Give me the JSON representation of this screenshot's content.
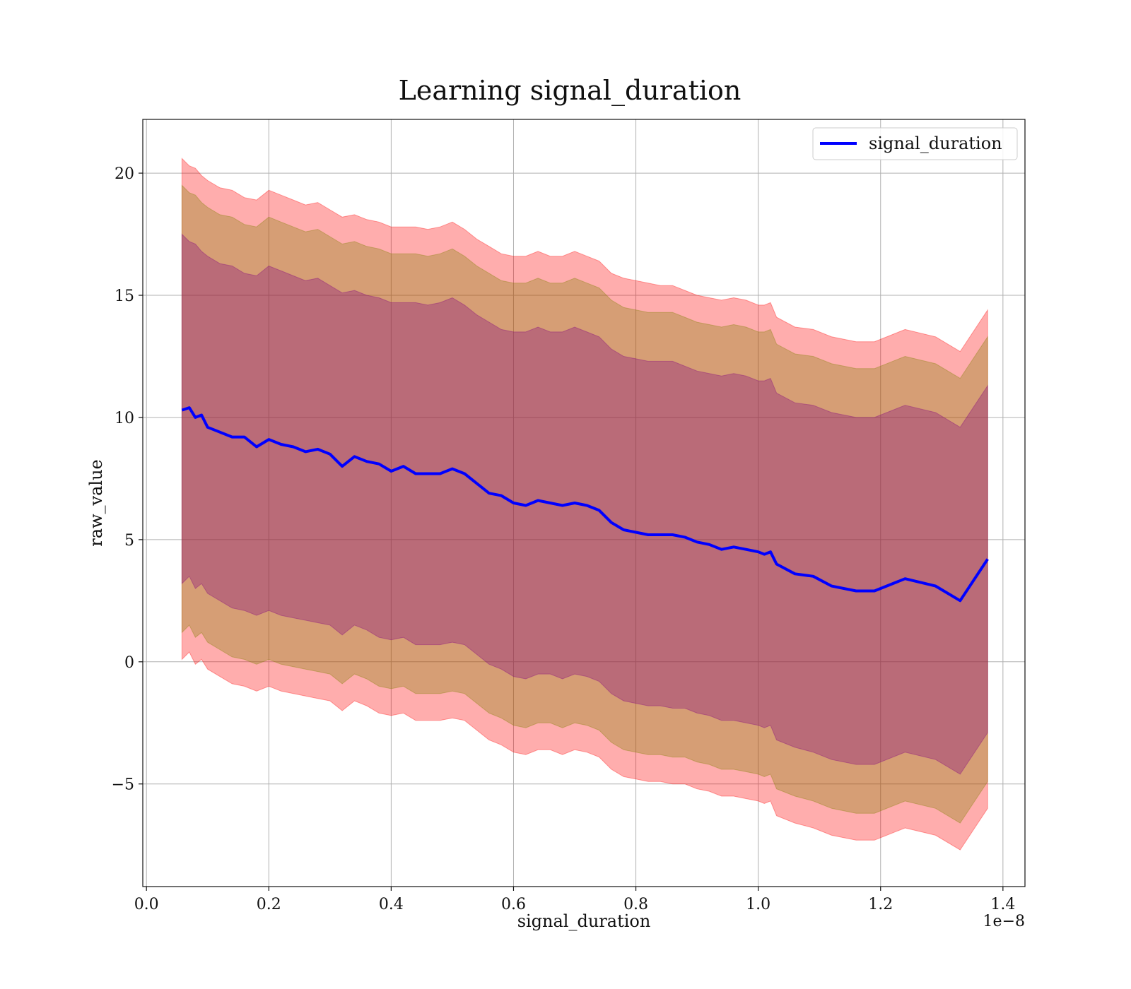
{
  "chart_data": {
    "type": "line",
    "title": "Learning signal_duration",
    "xlabel": "signal_duration",
    "ylabel": "raw_value",
    "x_offset_text": "1e−8",
    "xlim": [
      -0.006,
      1.436
    ],
    "ylim": [
      -9.2,
      22.2
    ],
    "x_ticks": [
      0.0,
      0.2,
      0.4,
      0.6,
      0.8,
      1.0,
      1.2,
      1.4
    ],
    "x_tick_labels": [
      "0.0",
      "0.2",
      "0.4",
      "0.6",
      "0.8",
      "1.0",
      "1.2",
      "1.4"
    ],
    "y_ticks": [
      -5,
      0,
      5,
      10,
      15,
      20
    ],
    "y_tick_labels": [
      "−5",
      "0",
      "5",
      "10",
      "15",
      "20"
    ],
    "grid": true,
    "legend_position": "top-right",
    "series": [
      {
        "name": "signal_duration",
        "color": "#0000ff",
        "x": [
          0.058,
          0.07,
          0.08,
          0.09,
          0.1,
          0.12,
          0.14,
          0.16,
          0.18,
          0.2,
          0.22,
          0.24,
          0.26,
          0.28,
          0.3,
          0.32,
          0.34,
          0.36,
          0.38,
          0.4,
          0.42,
          0.44,
          0.46,
          0.48,
          0.5,
          0.52,
          0.54,
          0.56,
          0.58,
          0.6,
          0.62,
          0.64,
          0.66,
          0.68,
          0.7,
          0.72,
          0.74,
          0.76,
          0.78,
          0.8,
          0.82,
          0.84,
          0.86,
          0.88,
          0.9,
          0.92,
          0.94,
          0.96,
          0.98,
          1.0,
          1.01,
          1.02,
          1.03,
          1.06,
          1.09,
          1.12,
          1.16,
          1.19,
          1.24,
          1.29,
          1.33,
          1.375
        ],
        "y": [
          10.3,
          10.4,
          10.0,
          10.1,
          9.6,
          9.4,
          9.2,
          9.2,
          8.8,
          9.1,
          8.9,
          8.8,
          8.6,
          8.7,
          8.5,
          8.0,
          8.4,
          8.2,
          8.1,
          7.8,
          8.0,
          7.7,
          7.7,
          7.7,
          7.9,
          7.7,
          7.3,
          6.9,
          6.8,
          6.5,
          6.4,
          6.6,
          6.5,
          6.4,
          6.5,
          6.4,
          6.2,
          5.7,
          5.4,
          5.3,
          5.2,
          5.2,
          5.2,
          5.1,
          4.9,
          4.8,
          4.6,
          4.7,
          4.6,
          4.5,
          4.4,
          4.5,
          4.0,
          3.6,
          3.5,
          3.1,
          2.9,
          2.9,
          3.4,
          3.1,
          2.5,
          4.2
        ]
      }
    ],
    "bands": [
      {
        "color": "#ff0000",
        "opacity": 0.32,
        "upper": [
          20.6,
          20.3,
          20.2,
          19.9,
          19.7,
          19.4,
          19.3,
          19.0,
          18.9,
          19.3,
          19.1,
          18.9,
          18.7,
          18.8,
          18.5,
          18.2,
          18.3,
          18.1,
          18.0,
          17.8,
          17.8,
          17.8,
          17.7,
          17.8,
          18.0,
          17.7,
          17.3,
          17.0,
          16.7,
          16.6,
          16.6,
          16.8,
          16.6,
          16.6,
          16.8,
          16.6,
          16.4,
          15.9,
          15.7,
          15.6,
          15.5,
          15.4,
          15.4,
          15.2,
          15.0,
          14.9,
          14.8,
          14.9,
          14.8,
          14.6,
          14.6,
          14.7,
          14.1,
          13.7,
          13.6,
          13.3,
          13.1,
          13.1,
          13.6,
          13.3,
          12.7,
          14.4
        ],
        "lower": [
          0.1,
          0.4,
          -0.1,
          0.1,
          -0.3,
          -0.6,
          -0.9,
          -1.0,
          -1.2,
          -1.0,
          -1.2,
          -1.3,
          -1.4,
          -1.5,
          -1.6,
          -2.0,
          -1.6,
          -1.8,
          -2.1,
          -2.2,
          -2.1,
          -2.4,
          -2.4,
          -2.4,
          -2.3,
          -2.4,
          -2.8,
          -3.2,
          -3.4,
          -3.7,
          -3.8,
          -3.6,
          -3.6,
          -3.8,
          -3.6,
          -3.7,
          -3.9,
          -4.4,
          -4.7,
          -4.8,
          -4.9,
          -4.9,
          -5.0,
          -5.0,
          -5.2,
          -5.3,
          -5.5,
          -5.5,
          -5.6,
          -5.7,
          -5.8,
          -5.7,
          -6.3,
          -6.6,
          -6.8,
          -7.1,
          -7.3,
          -7.3,
          -6.8,
          -7.1,
          -7.7,
          -6.0
        ]
      },
      {
        "color": "#808000",
        "opacity": 0.32,
        "upper": [
          19.5,
          19.2,
          19.1,
          18.8,
          18.6,
          18.3,
          18.2,
          17.9,
          17.8,
          18.2,
          18.0,
          17.8,
          17.6,
          17.7,
          17.4,
          17.1,
          17.2,
          17.0,
          16.9,
          16.7,
          16.7,
          16.7,
          16.6,
          16.7,
          16.9,
          16.6,
          16.2,
          15.9,
          15.6,
          15.5,
          15.5,
          15.7,
          15.5,
          15.5,
          15.7,
          15.5,
          15.3,
          14.8,
          14.5,
          14.4,
          14.3,
          14.3,
          14.3,
          14.1,
          13.9,
          13.8,
          13.7,
          13.8,
          13.7,
          13.5,
          13.5,
          13.6,
          13.0,
          12.6,
          12.5,
          12.2,
          12.0,
          12.0,
          12.5,
          12.2,
          11.6,
          13.3
        ],
        "lower": [
          1.2,
          1.5,
          1.0,
          1.2,
          0.8,
          0.5,
          0.2,
          0.1,
          -0.1,
          0.1,
          -0.1,
          -0.2,
          -0.3,
          -0.4,
          -0.5,
          -0.9,
          -0.5,
          -0.7,
          -1.0,
          -1.1,
          -1.0,
          -1.3,
          -1.3,
          -1.3,
          -1.2,
          -1.3,
          -1.7,
          -2.1,
          -2.3,
          -2.6,
          -2.7,
          -2.5,
          -2.5,
          -2.7,
          -2.5,
          -2.6,
          -2.8,
          -3.3,
          -3.6,
          -3.7,
          -3.8,
          -3.8,
          -3.9,
          -3.9,
          -4.1,
          -4.2,
          -4.4,
          -4.4,
          -4.5,
          -4.6,
          -4.7,
          -4.6,
          -5.2,
          -5.5,
          -5.7,
          -6.0,
          -6.2,
          -6.2,
          -5.7,
          -6.0,
          -6.6,
          -4.9
        ]
      },
      {
        "color": "#800080",
        "opacity": 0.32,
        "upper": [
          17.5,
          17.2,
          17.1,
          16.8,
          16.6,
          16.3,
          16.2,
          15.9,
          15.8,
          16.2,
          16.0,
          15.8,
          15.6,
          15.7,
          15.4,
          15.1,
          15.2,
          15.0,
          14.9,
          14.7,
          14.7,
          14.7,
          14.6,
          14.7,
          14.9,
          14.6,
          14.2,
          13.9,
          13.6,
          13.5,
          13.5,
          13.7,
          13.5,
          13.5,
          13.7,
          13.5,
          13.3,
          12.8,
          12.5,
          12.4,
          12.3,
          12.3,
          12.3,
          12.1,
          11.9,
          11.8,
          11.7,
          11.8,
          11.7,
          11.5,
          11.5,
          11.6,
          11.0,
          10.6,
          10.5,
          10.2,
          10.0,
          10.0,
          10.5,
          10.2,
          9.6,
          11.3
        ],
        "lower": [
          3.2,
          3.5,
          3.0,
          3.2,
          2.8,
          2.5,
          2.2,
          2.1,
          1.9,
          2.1,
          1.9,
          1.8,
          1.7,
          1.6,
          1.5,
          1.1,
          1.5,
          1.3,
          1.0,
          0.9,
          1.0,
          0.7,
          0.7,
          0.7,
          0.8,
          0.7,
          0.3,
          -0.1,
          -0.3,
          -0.6,
          -0.7,
          -0.5,
          -0.5,
          -0.7,
          -0.5,
          -0.6,
          -0.8,
          -1.3,
          -1.6,
          -1.7,
          -1.8,
          -1.8,
          -1.9,
          -1.9,
          -2.1,
          -2.2,
          -2.4,
          -2.4,
          -2.5,
          -2.6,
          -2.7,
          -2.6,
          -3.2,
          -3.5,
          -3.7,
          -4.0,
          -4.2,
          -4.2,
          -3.7,
          -4.0,
          -4.6,
          -2.9
        ]
      }
    ]
  }
}
